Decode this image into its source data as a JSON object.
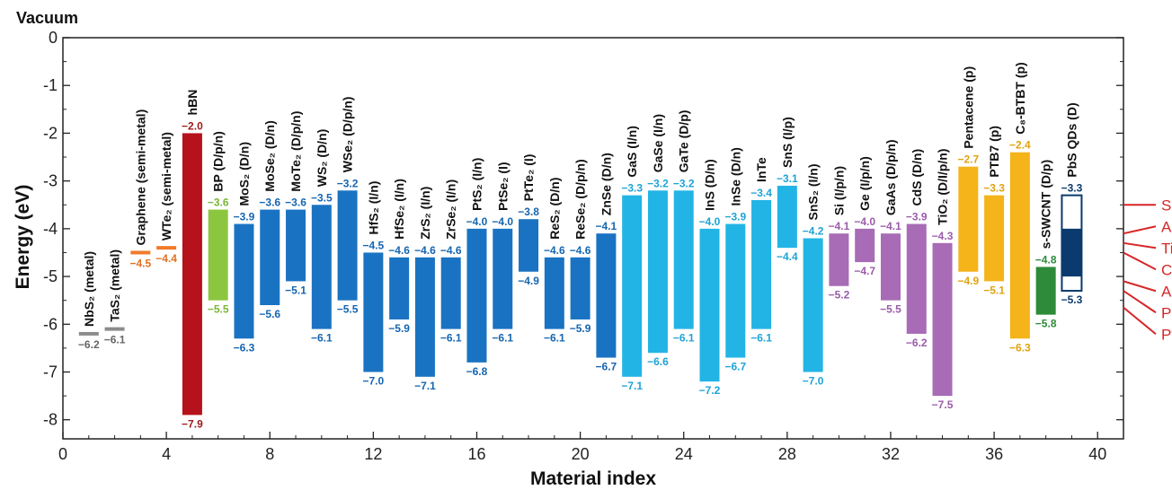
{
  "chart_data": {
    "type": "bar",
    "top_label": "Vacuum",
    "xlabel": "Material index",
    "ylabel": "Energy (eV)",
    "xlim": [
      0,
      41
    ],
    "ylim": [
      -8.4,
      0
    ],
    "xticks": [
      0,
      4,
      8,
      12,
      16,
      20,
      24,
      28,
      32,
      36,
      40
    ],
    "yticks": [
      0,
      -1,
      -2,
      -3,
      -4,
      -5,
      -6,
      -7,
      -8
    ],
    "colors": {
      "gray": "#8c8c8c",
      "orange": "#f07b2b",
      "red": "#b5121b",
      "green": "#8cc63f",
      "blue": "#1a73c2",
      "cyan": "#23b4e6",
      "purple": "#a86bb6",
      "yellow": "#f4b41a",
      "dgreen": "#2e8b3a",
      "navy": "#0b3a6e",
      "metal": "#d62728",
      "label_gray": "#666666",
      "label_orange": "#e0701f",
      "label_red": "#9e1a1a",
      "label_green": "#7ab536",
      "label_blue": "#1565b0",
      "label_cyan": "#1ea3d6",
      "label_purple": "#9a5ca8",
      "label_yellow": "#e0a30f",
      "label_dgreen": "#2e8b3a",
      "label_navy": "#0b3a6e"
    },
    "materials": [
      {
        "x": 1,
        "name": "NbS₂ (metal)",
        "color": "gray",
        "line": true,
        "top": -6.2,
        "top_label": "−6.2"
      },
      {
        "x": 2,
        "name": "TaS₂ (metal)",
        "color": "gray",
        "line": true,
        "top": -6.1,
        "top_label": "−6.1"
      },
      {
        "x": 3,
        "name": "Graphene (semi-metal)",
        "color": "orange",
        "line": true,
        "top": -4.5,
        "top_label": "−4.5"
      },
      {
        "x": 4,
        "name": "WTe₂ (semi-metal)",
        "color": "orange",
        "line": true,
        "top": -4.4,
        "top_label": "−4.4"
      },
      {
        "x": 5,
        "name": "hBN",
        "color": "red",
        "top": -2.0,
        "bottom": -7.9,
        "top_label": "−2.0",
        "bottom_label": "−7.9"
      },
      {
        "x": 6,
        "name": "BP (D/p/n)",
        "color": "green",
        "top": -3.6,
        "bottom": -5.5,
        "top_label": "−3.6",
        "bottom_label": "−5.5"
      },
      {
        "x": 7,
        "name": "MoS₂ (D/n)",
        "color": "blue",
        "top": -3.9,
        "bottom": -6.3,
        "top_label": "−3.9",
        "bottom_label": "−6.3"
      },
      {
        "x": 8,
        "name": "MoSe₂ (D/n)",
        "color": "blue",
        "top": -3.6,
        "bottom": -5.6,
        "top_label": "−3.6",
        "bottom_label": "−5.6"
      },
      {
        "x": 9,
        "name": "MoTe₂ (D/p/n)",
        "color": "blue",
        "top": -3.6,
        "bottom": -5.1,
        "top_label": "−3.6",
        "bottom_label": "−5.1"
      },
      {
        "x": 10,
        "name": "WS₂ (D/n)",
        "color": "blue",
        "top": -3.5,
        "bottom": -6.1,
        "top_label": "−3.5",
        "bottom_label": "−6.1"
      },
      {
        "x": 11,
        "name": "WSe₂ (D/p/n)",
        "color": "blue",
        "top": -3.2,
        "bottom": -5.5,
        "top_label": "−3.2",
        "bottom_label": "−5.5"
      },
      {
        "x": 12,
        "name": "HfS₂ (I/n)",
        "color": "blue",
        "top": -4.5,
        "bottom": -7.0,
        "top_label": "−4.5",
        "bottom_label": "−7.0"
      },
      {
        "x": 13,
        "name": "HfSe₂ (I/n)",
        "color": "blue",
        "top": -4.6,
        "bottom": -5.9,
        "top_label": "−4.6",
        "bottom_label": "−5.9"
      },
      {
        "x": 14,
        "name": "ZrS₂ (I/n)",
        "color": "blue",
        "top": -4.6,
        "bottom": -7.1,
        "top_label": "−4.6",
        "bottom_label": "−7.1"
      },
      {
        "x": 15,
        "name": "ZrSe₂ (I/n)",
        "color": "blue",
        "top": -4.6,
        "bottom": -6.1,
        "top_label": "−4.6",
        "bottom_label": "−6.1"
      },
      {
        "x": 16,
        "name": "PtS₂ (I/n)",
        "color": "blue",
        "top": -4.0,
        "bottom": -6.8,
        "top_label": "−4.0",
        "bottom_label": "−6.8"
      },
      {
        "x": 17,
        "name": "PtSe₂ (I)",
        "color": "blue",
        "top": -4.0,
        "bottom": -6.1,
        "top_label": "−4.0",
        "bottom_label": "−6.1"
      },
      {
        "x": 18,
        "name": "PtTe₂ (I)",
        "color": "blue",
        "top": -3.8,
        "bottom": -4.9,
        "top_label": "−3.8",
        "bottom_label": "−4.9"
      },
      {
        "x": 19,
        "name": "ReS₂ (D/n)",
        "color": "blue",
        "top": -4.6,
        "bottom": -6.1,
        "top_label": "−4.6",
        "bottom_label": "−6.1"
      },
      {
        "x": 20,
        "name": "ReSe₂ (D/p/n)",
        "color": "blue",
        "top": -4.6,
        "bottom": -5.9,
        "top_label": "−4.6",
        "bottom_label": "−5.9"
      },
      {
        "x": 21,
        "name": "ZnSe (D/n)",
        "color": "blue",
        "top": -4.1,
        "bottom": -6.7,
        "top_label": "−4.1",
        "bottom_label": "−6.7"
      },
      {
        "x": 22,
        "name": "GaS (I/n)",
        "color": "cyan",
        "top": -3.3,
        "bottom": -7.1,
        "top_label": "−3.3",
        "bottom_label": "−7.1"
      },
      {
        "x": 23,
        "name": "GaSe (I/n)",
        "color": "cyan",
        "top": -3.2,
        "bottom": -6.6,
        "top_label": "−3.2",
        "bottom_label": "−6.6"
      },
      {
        "x": 24,
        "name": "GaTe (D/p)",
        "color": "cyan",
        "top": -3.2,
        "bottom": -6.1,
        "top_label": "−3.2",
        "bottom_label": "−6.1"
      },
      {
        "x": 25,
        "name": "InS (D/n)",
        "color": "cyan",
        "top": -4.0,
        "bottom": -7.2,
        "top_label": "−4.0",
        "bottom_label": "−7.2"
      },
      {
        "x": 26,
        "name": "InSe (D/n)",
        "color": "cyan",
        "top": -3.9,
        "bottom": -6.7,
        "top_label": "−3.9",
        "bottom_label": "−6.7"
      },
      {
        "x": 27,
        "name": "InTe",
        "color": "cyan",
        "top": -3.4,
        "bottom": -6.1,
        "top_label": "−3.4",
        "bottom_label": "−6.1"
      },
      {
        "x": 28,
        "name": "SnS (I/p)",
        "color": "cyan",
        "top": -3.1,
        "bottom": -4.4,
        "top_label": "−3.1",
        "bottom_label": "−4.4"
      },
      {
        "x": 29,
        "name": "SnS₂ (I/n)",
        "color": "cyan",
        "top": -4.2,
        "bottom": -7.0,
        "top_label": "−4.2",
        "bottom_label": "−7.0"
      },
      {
        "x": 30,
        "name": "Si (I/p/n)",
        "color": "purple",
        "top": -4.1,
        "bottom": -5.2,
        "top_label": "−4.1",
        "bottom_label": "−5.2"
      },
      {
        "x": 31,
        "name": "Ge (I/p/n)",
        "color": "purple",
        "top": -4.0,
        "bottom": -4.7,
        "top_label": "−4.0",
        "bottom_label": "−4.7"
      },
      {
        "x": 32,
        "name": "GaAs (D/p/n)",
        "color": "purple",
        "top": -4.1,
        "bottom": -5.5,
        "top_label": "−4.1",
        "bottom_label": "−5.5"
      },
      {
        "x": 33,
        "name": "CdS (D/n)",
        "color": "purple",
        "top": -3.9,
        "bottom": -6.2,
        "top_label": "−3.9",
        "bottom_label": "−6.2"
      },
      {
        "x": 34,
        "name": "TiO₂ (D/I/p/n)",
        "color": "purple",
        "top": -4.3,
        "bottom": -7.5,
        "top_label": "−4.3",
        "bottom_label": "−7.5"
      },
      {
        "x": 35,
        "name": "Pentacene (p)",
        "color": "yellow",
        "top": -2.7,
        "bottom": -4.9,
        "top_label": "−2.7",
        "bottom_label": "−4.9"
      },
      {
        "x": 36,
        "name": "PTB7 (p)",
        "color": "yellow",
        "top": -3.3,
        "bottom": -5.1,
        "top_label": "−3.3",
        "bottom_label": "−5.1"
      },
      {
        "x": 37,
        "name": "C₈-BTBT (p)",
        "color": "yellow",
        "top": -2.4,
        "bottom": -6.3,
        "top_label": "−2.4",
        "bottom_label": "−6.3"
      },
      {
        "x": 38,
        "name": "s-SWCNT (D/p)",
        "color": "dgreen",
        "top": -4.8,
        "bottom": -5.8,
        "top_label": "−4.8",
        "bottom_label": "−5.8"
      },
      {
        "x": 39,
        "name": "PbS QDs (D)",
        "color": "navy",
        "top": -3.3,
        "bottom": -5.3,
        "top_label": "−3.3",
        "bottom_label": "−5.3",
        "outlined": true,
        "fill_top": -4.0,
        "fill_bottom": -5.0
      }
    ],
    "metal_work_functions": [
      {
        "label": "Sc",
        "value": -3.5
      },
      {
        "label": "Al",
        "value": -4.1
      },
      {
        "label": "Ti",
        "value": -4.3
      },
      {
        "label": "Cr",
        "value": -4.5
      },
      {
        "label": "Au",
        "value": -5.1
      },
      {
        "label": "Pd",
        "value": -5.3
      },
      {
        "label": "Pt",
        "value": -5.65
      }
    ]
  }
}
